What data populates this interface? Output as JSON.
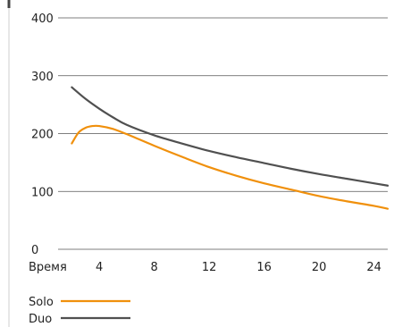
{
  "chart_data": {
    "type": "line",
    "xlabel": "Время",
    "x_ticks": [
      4,
      8,
      12,
      16,
      20,
      24
    ],
    "xlim": [
      1,
      25
    ],
    "y_ticks": [
      0,
      100,
      200,
      300,
      400
    ],
    "ylim": [
      0,
      400
    ],
    "grid": "horizontal",
    "legend_position": "bottom-left",
    "series": [
      {
        "name": "Solo",
        "color": "#f0900c",
        "x": [
          2,
          2.5,
          3,
          3.5,
          4,
          5,
          6,
          8,
          10,
          12,
          14,
          16,
          18,
          20,
          22,
          24,
          25
        ],
        "y": [
          183,
          202,
          210,
          213,
          213,
          208,
          199,
          179,
          160,
          142,
          127,
          114,
          103,
          92,
          83,
          75,
          70
        ]
      },
      {
        "name": "Duo",
        "color": "#505050",
        "x": [
          2,
          3,
          4,
          5,
          6,
          8,
          10,
          12,
          14,
          16,
          18,
          20,
          22,
          24,
          25
        ],
        "y": [
          280,
          260,
          243,
          228,
          215,
          197,
          183,
          170,
          159,
          149,
          139,
          130,
          122,
          114,
          110
        ]
      }
    ]
  }
}
